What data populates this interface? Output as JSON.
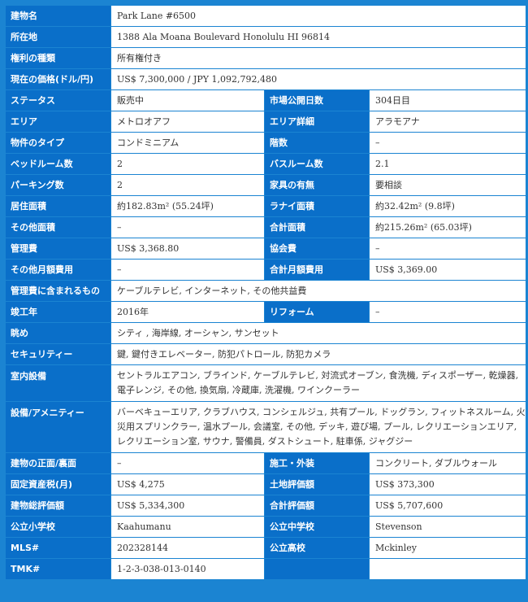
{
  "rows": [
    {
      "label": "建物名",
      "value": "Park Lane #6500"
    },
    {
      "label": "所在地",
      "value": "1388 Ala Moana Boulevard Honolulu HI 96814"
    },
    {
      "label": "権利の種類",
      "value": "所有権付き"
    },
    {
      "label": "現在の価格(ドル/円)",
      "value": "US$ 7,300,000 / JPY 1,092,792,480"
    },
    {
      "label": "ステータス",
      "value": "販売中",
      "label2": "市場公開日数",
      "value2": "304日目"
    },
    {
      "label": "エリア",
      "value": "メトロオアフ",
      "label2": "エリア詳細",
      "value2": "アラモアナ"
    },
    {
      "label": "物件のタイプ",
      "value": "コンドミニアム",
      "label2": "階数",
      "value2": "–"
    },
    {
      "label": "ベッドルーム数",
      "value": "2",
      "label2": "バスルーム数",
      "value2": "2.1"
    },
    {
      "label": "パーキング数",
      "value": "2",
      "label2": "家具の有無",
      "value2": "要相談"
    },
    {
      "label": "居住面積",
      "value": "約182.83m² (55.24坪)",
      "label2": "ラナイ面積",
      "value2": "約32.42m² (9.8坪)"
    },
    {
      "label": "その他面積",
      "value": "–",
      "label2": "合計面積",
      "value2": "約215.26m² (65.03坪)"
    },
    {
      "label": "管理費",
      "value": "US$ 3,368.80",
      "label2": "協会費",
      "value2": "–"
    },
    {
      "label": "その他月額費用",
      "value": "–",
      "label2": "合計月額費用",
      "value2": "US$ 3,369.00"
    },
    {
      "label": "管理費に含まれるもの",
      "value": "ケーブルテレビ, インターネット, その他共益費"
    },
    {
      "label": "竣工年",
      "value": "2016年",
      "label2": "リフォーム",
      "value2": "–"
    },
    {
      "label": "眺め",
      "value": "シティ , 海岸線, オーシャン, サンセット"
    },
    {
      "label": "セキュリティー",
      "value": "鍵, 鍵付きエレベーター, 防犯パトロール, 防犯カメラ"
    },
    {
      "label": "室内設備",
      "value": "セントラルエアコン, ブラインド, ケーブルテレビ, 対流式オーブン, 食洗機, ディスポーザー, 乾燥器, 電子レンジ, その他, 換気扇, 冷蔵庫, 洗濯機, ワインクーラー"
    },
    {
      "label": "設備/アメニティー",
      "value": "バーベキューエリア, クラブハウス, コンシェルジュ, 共有プール, ドッグラン, フィットネスルーム, 火災用スプリンクラー, 温水プール, 会議室, その他, デッキ, 遊び場, プール, レクリエーションエリア, レクリエーション室, サウナ, 警備員, ダストシュート, 駐車係, ジャグジー"
    },
    {
      "label": "建物の正面/裏面",
      "value": "–",
      "label2": "施工・外装",
      "value2": "コンクリート, ダブルウォール"
    },
    {
      "label": "固定資産税(月)",
      "value": "US$ 4,275",
      "label2": "土地評価額",
      "value2": "US$ 373,300"
    },
    {
      "label": "建物総評価額",
      "value": "US$ 5,334,300",
      "label2": "合計評価額",
      "value2": "US$ 5,707,600"
    },
    {
      "label": "公立小学校",
      "value": "Kaahumanu",
      "label2": "公立中学校",
      "value2": "Stevenson"
    },
    {
      "label": "MLS#",
      "value": "202328144",
      "label2": "公立高校",
      "value2": "Mckinley"
    },
    {
      "label": "TMK#",
      "value": "1-2-3-038-013-0140",
      "label2": "",
      "value2": ""
    }
  ],
  "colors": {
    "label_bg": "#0a6fc9",
    "border": "#1b84d2",
    "value_bg": "#ffffff"
  }
}
